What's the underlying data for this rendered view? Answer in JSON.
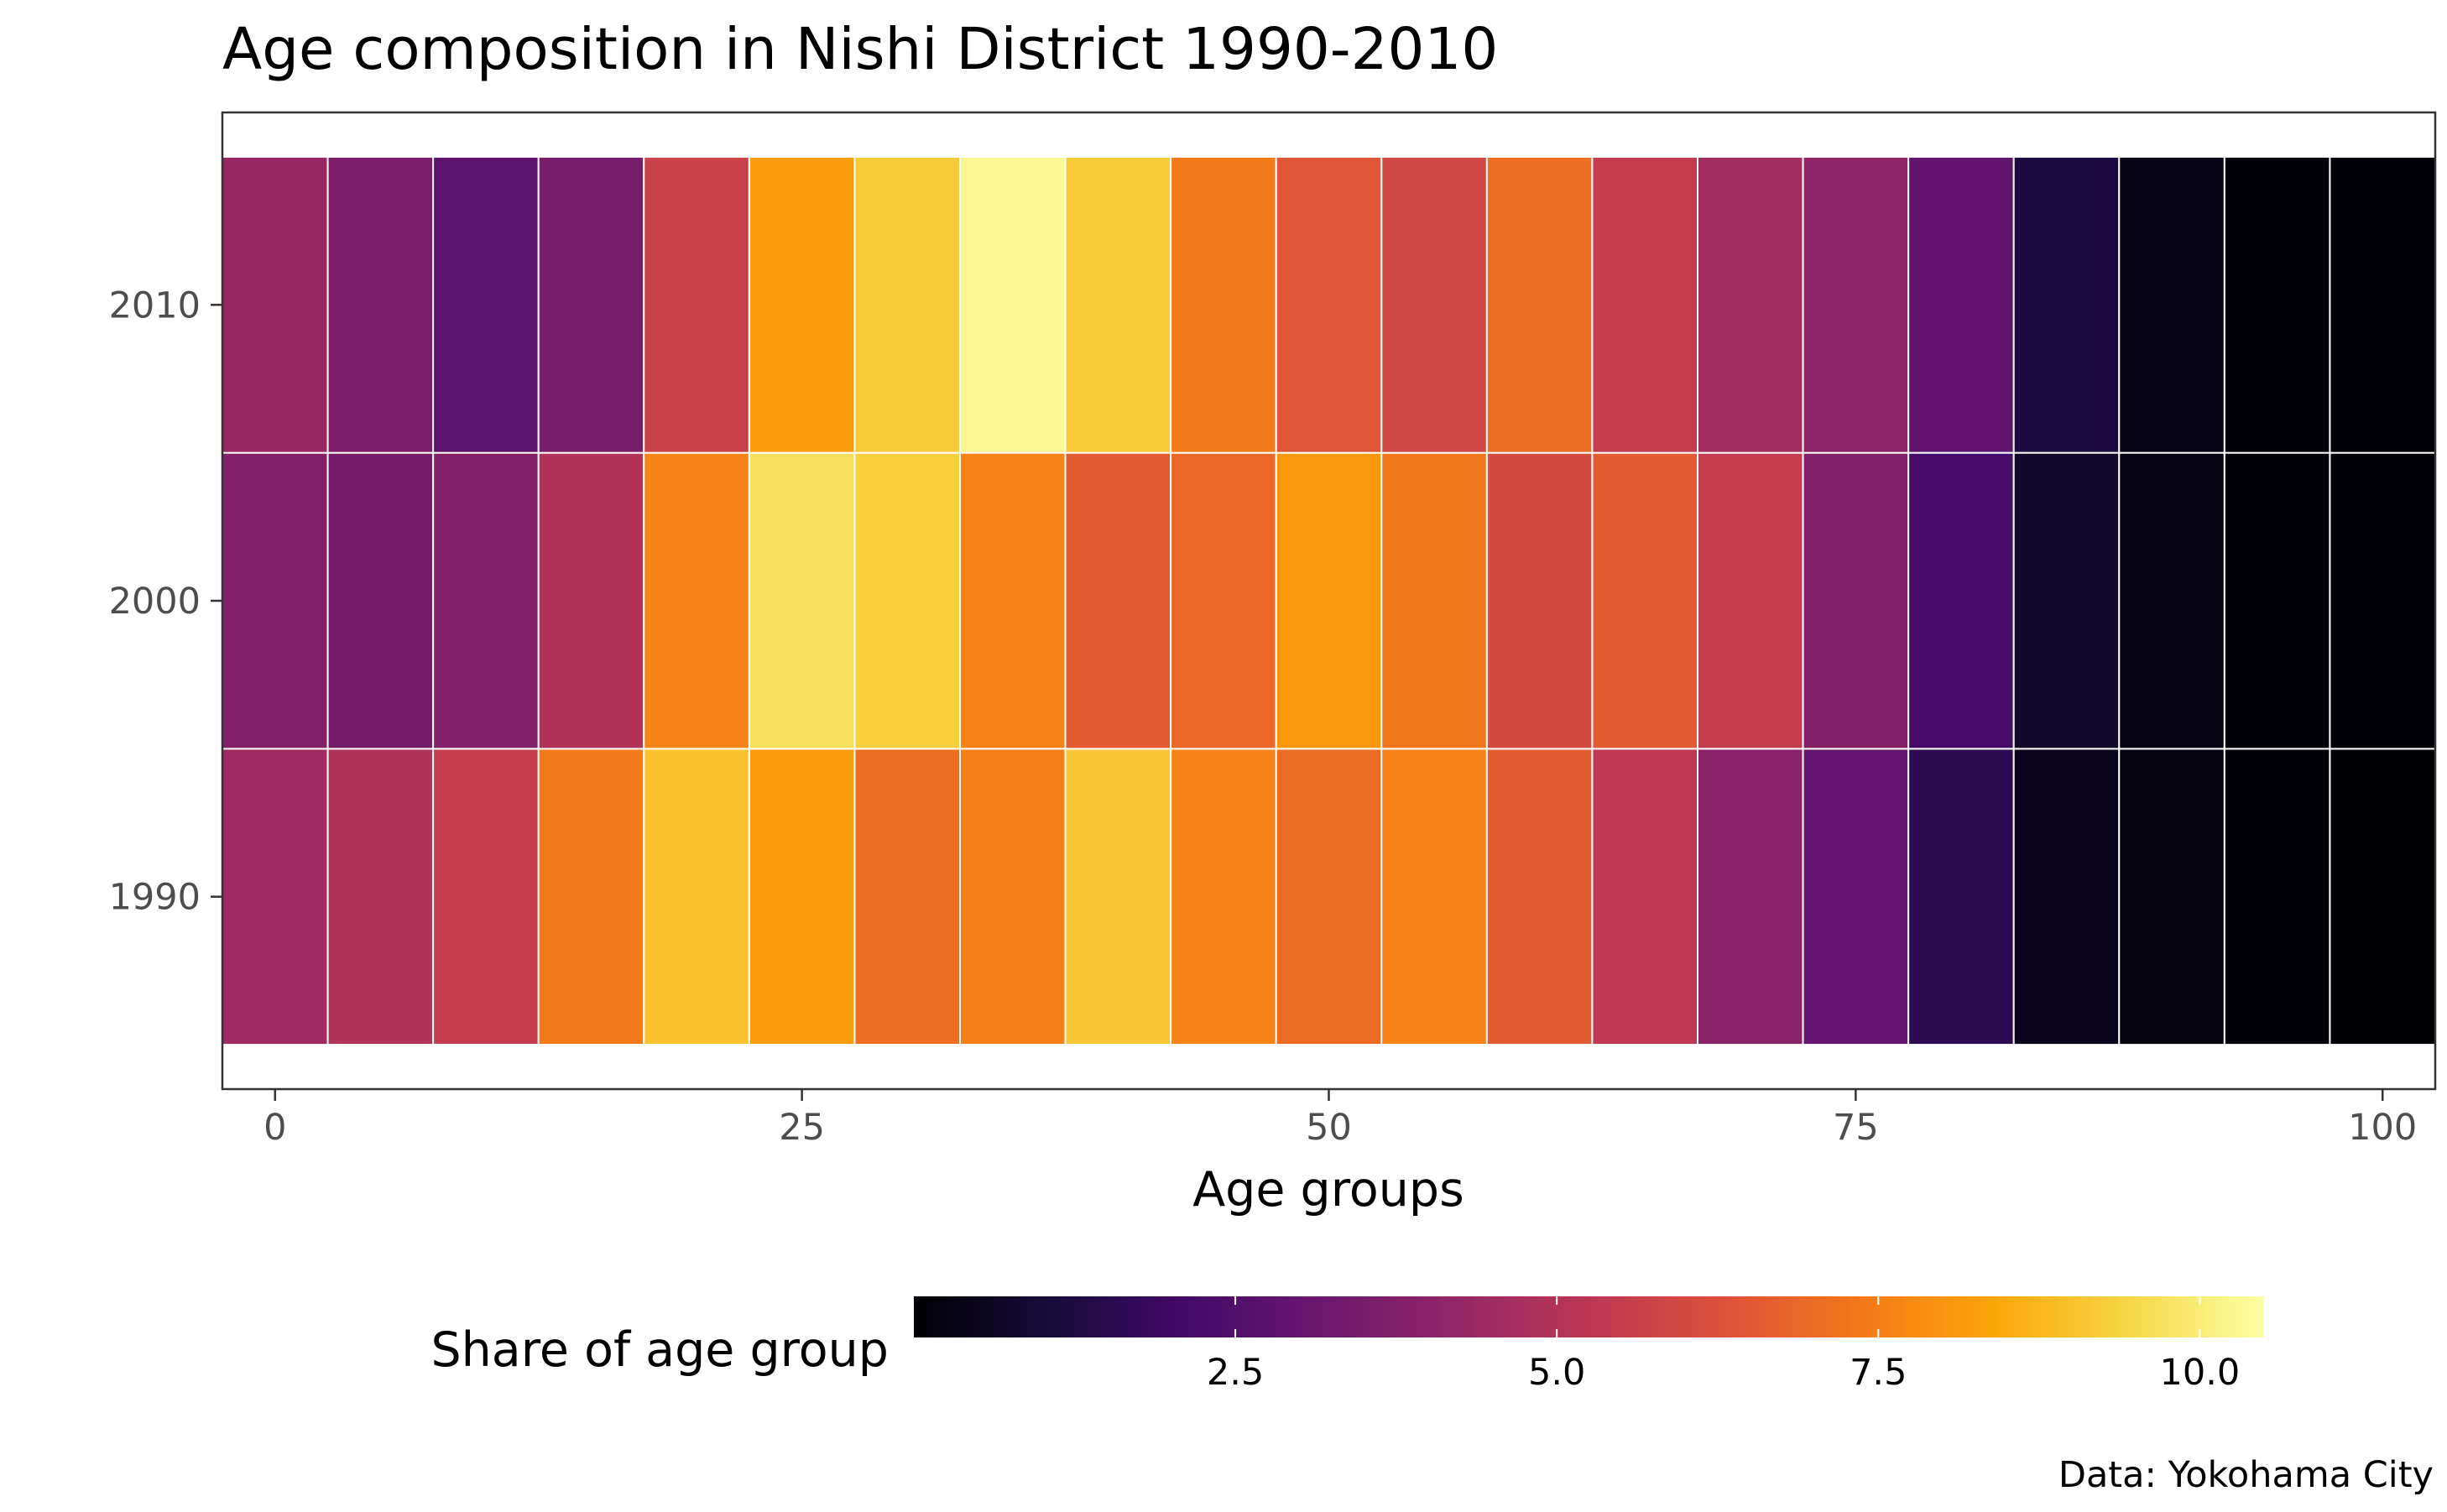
{
  "chart_data": {
    "type": "heatmap",
    "title": "Age composition in Nishi District 1990-2010",
    "xlabel": "Age groups",
    "ylabel": "",
    "caption": "Data: Yokohama City",
    "x": [
      0,
      5,
      10,
      15,
      20,
      25,
      30,
      35,
      40,
      45,
      50,
      55,
      60,
      65,
      70,
      75,
      80,
      85,
      90,
      95,
      100
    ],
    "x_tick_labels": [
      "0",
      "25",
      "50",
      "75",
      "100"
    ],
    "x_ticks": [
      0,
      25,
      50,
      75,
      100
    ],
    "xlim": [
      -2.5,
      102.5
    ],
    "y": [
      1990,
      2000,
      2010
    ],
    "y_tick_labels": [
      "1990",
      "2000",
      "2010"
    ],
    "grid": false,
    "series": [
      {
        "year": 1990,
        "values": [
          4.5,
          5.0,
          5.5,
          7.4,
          9.0,
          8.2,
          7.1,
          7.5,
          9.1,
          7.6,
          7.0,
          7.6,
          6.6,
          5.3,
          4.0,
          3.0,
          1.6,
          0.5,
          0.2,
          0.05,
          0.02
        ]
      },
      {
        "year": 2000,
        "values": [
          3.8,
          3.4,
          3.8,
          5.0,
          7.6,
          9.7,
          9.3,
          7.6,
          6.6,
          6.9,
          8.1,
          7.3,
          6.0,
          6.6,
          5.5,
          3.8,
          2.2,
          0.8,
          0.3,
          0.1,
          0.03
        ]
      },
      {
        "year": 2010,
        "values": [
          4.3,
          3.6,
          2.8,
          3.5,
          5.7,
          8.2,
          9.2,
          10.3,
          9.2,
          7.4,
          6.4,
          5.9,
          7.1,
          5.5,
          4.6,
          4.1,
          2.9,
          1.2,
          0.4,
          0.1,
          0.04
        ]
      }
    ],
    "legend": {
      "title": "Share of age group",
      "position": "bottom",
      "breaks": [
        2.5,
        5.0,
        7.5,
        10.0
      ],
      "break_labels": [
        "2.5",
        "5.0",
        "7.5",
        "10.0"
      ],
      "range": [
        0.0,
        10.5
      ],
      "palette": "inferno",
      "stops": [
        "#000004",
        "#160b39",
        "#420a68",
        "#6a176e",
        "#932667",
        "#bc3754",
        "#dd513a",
        "#f37819",
        "#fca50a",
        "#f6d746",
        "#fcffa4"
      ]
    }
  }
}
